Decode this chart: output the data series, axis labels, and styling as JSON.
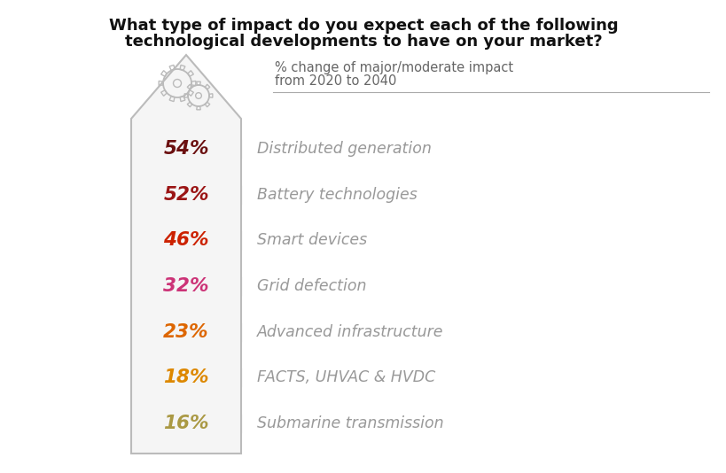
{
  "title_line1": "What type of impact do you expect each of the following",
  "title_line2": "technological developments to have on your market?",
  "subtitle_line1": "% change of major/moderate impact",
  "subtitle_line2": "from 2020 to 2040",
  "percentages": [
    "54%",
    "52%",
    "46%",
    "32%",
    "23%",
    "18%",
    "16%"
  ],
  "labels": [
    "Distributed generation",
    "Battery technologies",
    "Smart devices",
    "Grid defection",
    "Advanced infrastructure",
    "FACTS, UHVAC & HVDC",
    "Submarine transmission"
  ],
  "pct_colors": [
    "#6B1010",
    "#9B1515",
    "#CC2200",
    "#CC3377",
    "#DD6600",
    "#DD8800",
    "#AA9944"
  ],
  "label_color": "#999999",
  "background_color": "#ffffff",
  "title_color": "#111111",
  "subtitle_color": "#666666",
  "arrow_face": "#f5f5f5",
  "arrow_edge": "#bbbbbb",
  "gear_color": "#bbbbbb",
  "line_color": "#aaaaaa"
}
